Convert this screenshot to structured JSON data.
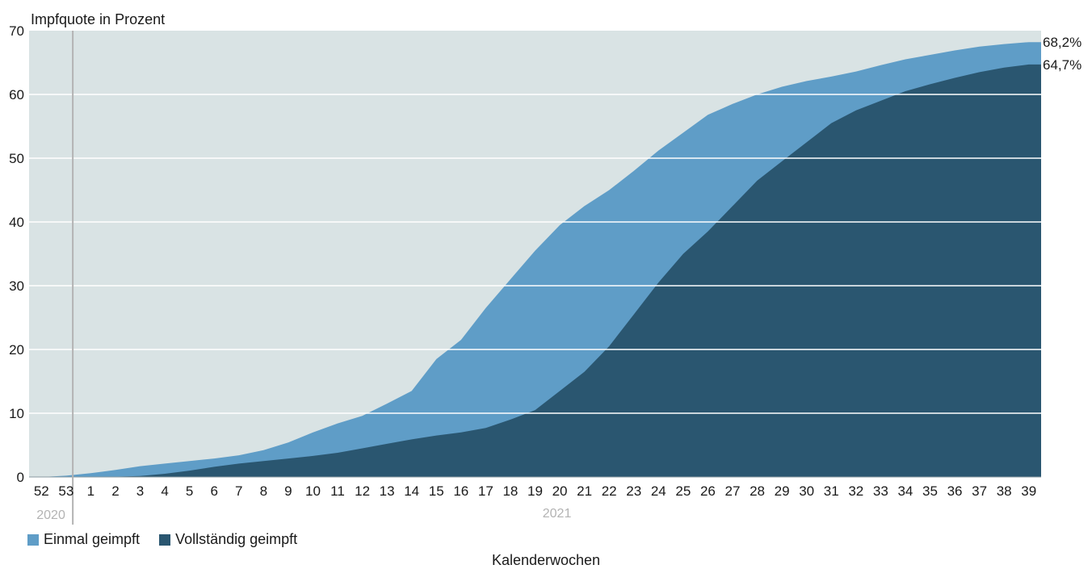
{
  "chart_data": {
    "type": "area",
    "ylabel": "Impfquote in Prozent",
    "xlabel": "Kalenderwochen",
    "ylim": [
      0,
      70
    ],
    "yticks": [
      0,
      10,
      20,
      30,
      40,
      50,
      60,
      70
    ],
    "x_ticks": [
      "52",
      "53",
      "1",
      "2",
      "3",
      "4",
      "5",
      "6",
      "7",
      "8",
      "9",
      "10",
      "11",
      "12",
      "13",
      "14",
      "15",
      "16",
      "17",
      "18",
      "19",
      "20",
      "21",
      "22",
      "23",
      "24",
      "25",
      "26",
      "27",
      "28",
      "29",
      "30",
      "31",
      "32",
      "33",
      "34",
      "35",
      "36",
      "37",
      "38",
      "39"
    ],
    "year_labels": [
      "2020",
      "2021"
    ],
    "series": [
      {
        "name": "Einmal geimpft",
        "color": "#5f9dc7",
        "end_label": "68,2%",
        "x": [
          52,
          53,
          1,
          2,
          3,
          4,
          5,
          6,
          7,
          8,
          9,
          10,
          11,
          12,
          13,
          14,
          15,
          16,
          17,
          18,
          19,
          20,
          21,
          22,
          23,
          24,
          25,
          26,
          27,
          28,
          29,
          30,
          31,
          32,
          33,
          34,
          35,
          36,
          37,
          38,
          39
        ],
        "values": [
          0.0,
          0.2,
          0.6,
          1.1,
          1.7,
          2.1,
          2.5,
          2.9,
          3.4,
          4.2,
          5.4,
          7.0,
          8.4,
          9.6,
          11.5,
          13.5,
          18.5,
          21.5,
          26.5,
          31.0,
          35.5,
          39.5,
          42.5,
          45.0,
          48.0,
          51.2,
          54.0,
          56.8,
          58.5,
          60.0,
          61.2,
          62.1,
          62.8,
          63.6,
          64.6,
          65.5,
          66.2,
          66.9,
          67.5,
          67.9,
          68.2
        ]
      },
      {
        "name": "Vollständig geimpft",
        "color": "#2a5670",
        "end_label": "64,7%",
        "x": [
          52,
          53,
          1,
          2,
          3,
          4,
          5,
          6,
          7,
          8,
          9,
          10,
          11,
          12,
          13,
          14,
          15,
          16,
          17,
          18,
          19,
          20,
          21,
          22,
          23,
          24,
          25,
          26,
          27,
          28,
          29,
          30,
          31,
          32,
          33,
          34,
          35,
          36,
          37,
          38,
          39
        ],
        "values": [
          0.0,
          0.0,
          0.0,
          0.05,
          0.15,
          0.5,
          1.0,
          1.6,
          2.1,
          2.5,
          2.9,
          3.3,
          3.8,
          4.5,
          5.2,
          5.9,
          6.5,
          7.0,
          7.7,
          9.0,
          10.5,
          13.5,
          16.5,
          20.5,
          25.5,
          30.5,
          35.0,
          38.5,
          42.5,
          46.5,
          49.5,
          52.5,
          55.5,
          57.5,
          59.0,
          60.5,
          61.6,
          62.6,
          63.5,
          64.2,
          64.7
        ]
      }
    ],
    "legend": "bottom-left",
    "grid": true,
    "background_color": "#d9e3e4",
    "year_divider_color": "#b3b3b3"
  }
}
